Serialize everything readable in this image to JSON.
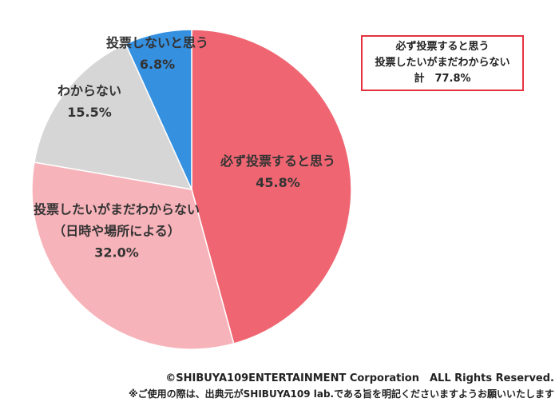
{
  "chart_data": {
    "type": "pie",
    "title": "",
    "start_angle_deg": 0,
    "direction": "clockwise",
    "slices": [
      {
        "label": "必ず投票すると思う",
        "value_label": "45.8%",
        "value": 45.8,
        "color": "#ef6672"
      },
      {
        "label": "投票したいがまだわからない（日時や場所による）",
        "label_lines": [
          "投票したいがまだわからない",
          "（日時や場所による）"
        ],
        "value_label": "32.0%",
        "value": 32.0,
        "color": "#f7b3ba"
      },
      {
        "label": "わからない",
        "value_label": "15.5%",
        "value": 15.5,
        "color": "#d6d6d6"
      },
      {
        "label": "投票しないと思う",
        "value_label": "6.8%",
        "value": 6.8,
        "color": "#3590e0"
      }
    ]
  },
  "callout": {
    "lines": [
      "必ず投票すると思う",
      "投票したいがまだわからない",
      "計　77.8%"
    ],
    "border_color": "#e5323e"
  },
  "footer": {
    "copyright": "©SHIBUYA109ENTERTAINMENT Corporation　ALL Rights Reserved.",
    "notice": "※ご使用の際は、出典元がSHIBUYA109 lab.である旨を明記くださいますようお願いいたします"
  }
}
